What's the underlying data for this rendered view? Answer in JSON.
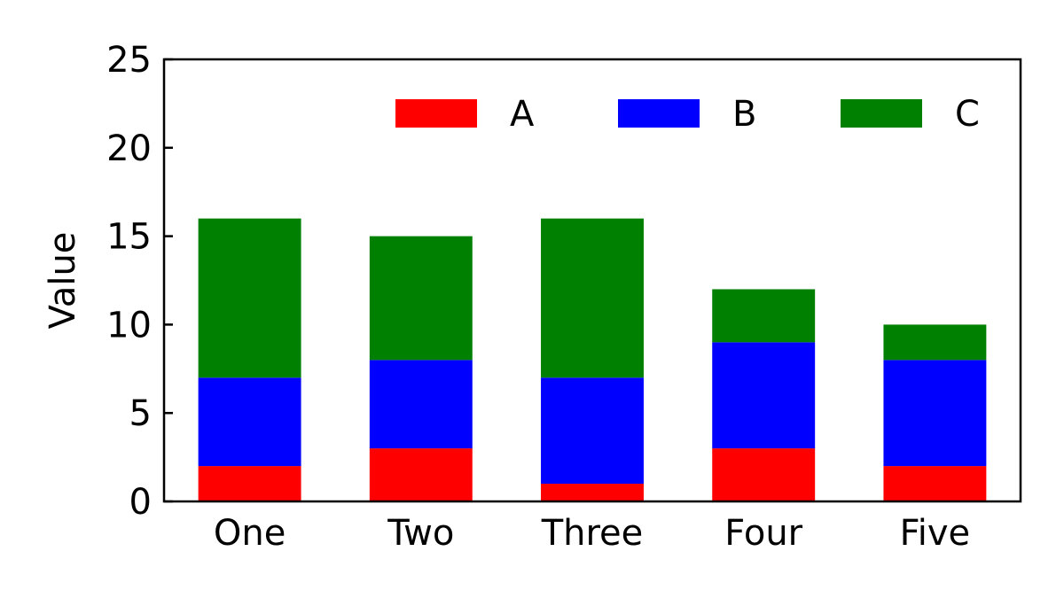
{
  "chart_data": {
    "type": "bar",
    "stacked": true,
    "title": "",
    "xlabel": "",
    "ylabel": "Value",
    "categories": [
      "One",
      "Two",
      "Three",
      "Four",
      "Five"
    ],
    "series": [
      {
        "name": "A",
        "color": "#ff0000",
        "values": [
          2,
          3,
          1,
          3,
          2
        ]
      },
      {
        "name": "B",
        "color": "#0000ff",
        "values": [
          5,
          5,
          6,
          6,
          6
        ]
      },
      {
        "name": "C",
        "color": "#008000",
        "values": [
          9,
          7,
          9,
          3,
          2
        ]
      }
    ],
    "ylim": [
      0,
      25
    ],
    "yticks": [
      0,
      5,
      10,
      15,
      20,
      25
    ],
    "grid": false,
    "legend_position": "top-right"
  }
}
